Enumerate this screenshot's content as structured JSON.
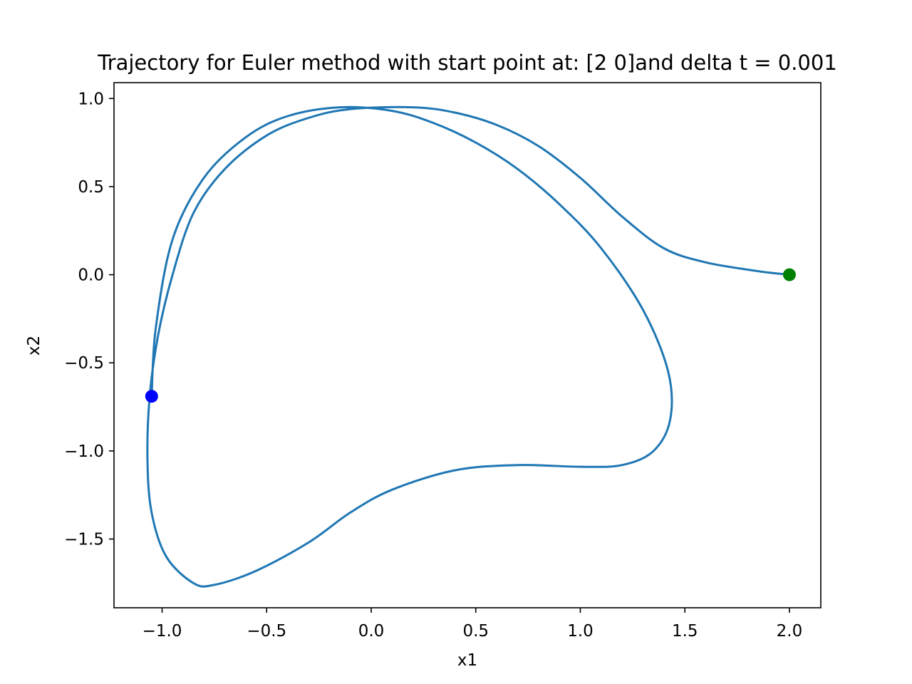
{
  "chart_data": {
    "type": "line",
    "title": "Trajectory for Euler method with start point at: [2 0]and delta t = 0.001",
    "xlabel": "x1",
    "ylabel": "x2",
    "xlim": [
      -1.23,
      2.15
    ],
    "ylim": [
      -1.89,
      1.09
    ],
    "xticks": [
      -1.0,
      -0.5,
      0.0,
      0.5,
      1.0,
      1.5,
      2.0
    ],
    "xtick_labels": [
      "−1.0",
      "−0.5",
      "0.0",
      "0.5",
      "1.0",
      "1.5",
      "2.0"
    ],
    "yticks": [
      1.0,
      0.5,
      0.0,
      -0.5,
      -1.0,
      -1.5
    ],
    "ytick_labels": [
      "1.0",
      "0.5",
      "0.0",
      "−0.5",
      "−1.0",
      "−1.5"
    ],
    "grid": false,
    "line_color": "#1f77b4",
    "series": [
      {
        "x": [
          2.0,
          1.85,
          1.6,
          1.4,
          1.2,
          1.0,
          0.8,
          0.6,
          0.4,
          0.2,
          -0.1,
          -0.3,
          -0.5,
          -0.7,
          -0.85,
          -0.95,
          -1.02,
          -1.06,
          -1.07,
          -1.05,
          -0.98,
          -0.85,
          -0.75,
          -0.55,
          -0.3,
          -0.1,
          0.1,
          0.4,
          0.7,
          1.0,
          1.2,
          1.35,
          1.43,
          1.42,
          1.3,
          1.1,
          0.9,
          0.7,
          0.5,
          0.3,
          0.1,
          -0.15,
          -0.4,
          -0.6,
          -0.8,
          -0.95,
          -1.03,
          -1.05
        ],
        "y": [
          0.0,
          0.02,
          0.07,
          0.15,
          0.33,
          0.55,
          0.73,
          0.85,
          0.92,
          0.95,
          0.94,
          0.89,
          0.79,
          0.6,
          0.35,
          0.0,
          -0.35,
          -0.7,
          -1.05,
          -1.35,
          -1.6,
          -1.75,
          -1.76,
          -1.68,
          -1.52,
          -1.35,
          -1.22,
          -1.11,
          -1.08,
          -1.09,
          -1.08,
          -1.0,
          -0.82,
          -0.55,
          -0.2,
          0.15,
          0.4,
          0.6,
          0.75,
          0.86,
          0.93,
          0.95,
          0.9,
          0.78,
          0.55,
          0.2,
          -0.3,
          -0.69
        ]
      }
    ],
    "markers": [
      {
        "x": 2.0,
        "y": 0.0,
        "color": "#008000"
      },
      {
        "x": -1.05,
        "y": -0.69,
        "color": "#0000ff"
      }
    ]
  }
}
